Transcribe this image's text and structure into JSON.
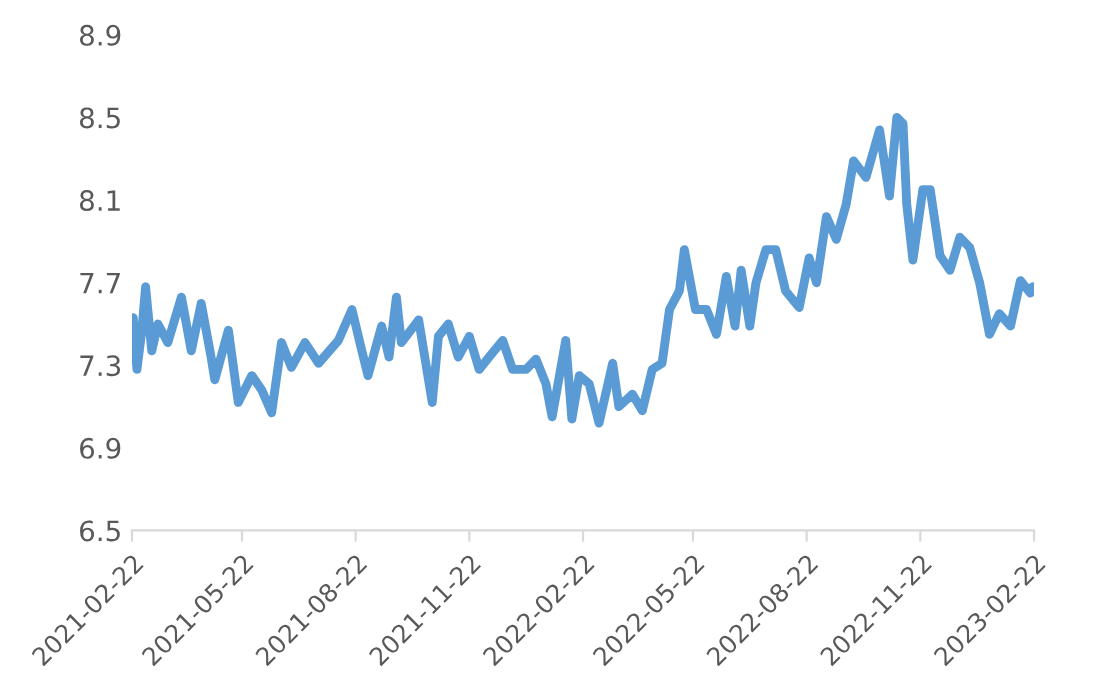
{
  "chart_data": {
    "type": "line",
    "x": [
      "2021-02-23",
      "2021-02-26",
      "2021-03-02",
      "2021-03-05",
      "2021-03-10",
      "2021-03-15",
      "2021-03-23",
      "2021-04-03",
      "2021-04-11",
      "2021-04-19",
      "2021-04-27",
      "2021-04-30",
      "2021-05-11",
      "2021-05-19",
      "2021-05-30",
      "2021-06-07",
      "2021-06-15",
      "2021-06-23",
      "2021-07-01",
      "2021-07-12",
      "2021-07-23",
      "2021-08-08",
      "2021-08-19",
      "2021-08-27",
      "2021-09-01",
      "2021-09-12",
      "2021-09-18",
      "2021-09-24",
      "2021-09-28",
      "2021-10-12",
      "2021-10-23",
      "2021-10-28",
      "2021-11-05",
      "2021-11-13",
      "2021-11-22",
      "2021-11-30",
      "2021-12-08",
      "2021-12-19",
      "2021-12-27",
      "2022-01-07",
      "2022-01-15",
      "2022-01-23",
      "2022-01-28",
      "2022-02-08",
      "2022-02-13",
      "2022-02-19",
      "2022-02-27",
      "2022-03-07",
      "2022-03-18",
      "2022-03-23",
      "2022-04-03",
      "2022-04-11",
      "2022-04-19",
      "2022-04-27",
      "2022-05-03",
      "2022-05-11",
      "2022-05-15",
      "2022-05-24",
      "2022-06-02",
      "2022-06-10",
      "2022-06-18",
      "2022-06-25",
      "2022-06-30",
      "2022-07-07",
      "2022-07-12",
      "2022-07-20",
      "2022-07-28",
      "2022-08-05",
      "2022-08-16",
      "2022-08-24",
      "2022-08-30",
      "2022-09-07",
      "2022-09-15",
      "2022-09-23",
      "2022-09-29",
      "2022-10-09",
      "2022-10-20",
      "2022-10-28",
      "2022-11-03",
      "2022-11-08",
      "2022-11-11",
      "2022-11-16",
      "2022-11-24",
      "2022-11-30",
      "2022-12-08",
      "2022-12-16",
      "2022-12-24",
      "2023-01-01",
      "2023-01-09",
      "2023-01-17",
      "2023-01-25",
      "2023-02-03",
      "2023-02-11",
      "2023-02-19",
      "2023-02-21"
    ],
    "series": [
      {
        "color": "#5b9bd5",
        "values": [
          7.53,
          7.28,
          7.47,
          7.68,
          7.37,
          7.5,
          7.41,
          7.63,
          7.37,
          7.6,
          7.34,
          7.23,
          7.47,
          7.12,
          7.25,
          7.18,
          7.07,
          7.41,
          7.29,
          7.41,
          7.31,
          7.42,
          7.57,
          7.37,
          7.25,
          7.49,
          7.34,
          7.63,
          7.41,
          7.52,
          7.12,
          7.44,
          7.5,
          7.34,
          7.44,
          7.28,
          7.34,
          7.42,
          7.28,
          7.28,
          7.33,
          7.21,
          7.05,
          7.42,
          7.04,
          7.25,
          7.21,
          7.02,
          7.31,
          7.1,
          7.16,
          7.08,
          7.28,
          7.31,
          7.57,
          7.66,
          7.86,
          7.57,
          7.57,
          7.45,
          7.73,
          7.49,
          7.76,
          7.49,
          7.7,
          7.86,
          7.86,
          7.66,
          7.58,
          7.82,
          7.7,
          8.02,
          7.91,
          8.08,
          8.29,
          8.21,
          8.44,
          8.12,
          8.5,
          8.47,
          8.08,
          7.81,
          8.15,
          8.15,
          7.83,
          7.76,
          7.92,
          7.87,
          7.7,
          7.45,
          7.55,
          7.49,
          7.71,
          7.65,
          7.68
        ]
      }
    ],
    "xlim": [
      "2021-02-22",
      "2023-02-22"
    ],
    "xticks": [
      "2021-02-22",
      "2021-05-22",
      "2021-08-22",
      "2021-11-22",
      "2022-02-22",
      "2022-05-22",
      "2022-08-22",
      "2022-11-22",
      "2023-02-22"
    ],
    "ylim": [
      6.5,
      8.9
    ],
    "yticks": [
      6.5,
      6.9,
      7.3,
      7.7,
      8.1,
      8.5,
      8.9
    ],
    "grid": false,
    "legend": false,
    "marker": "none",
    "line_style": "solid"
  }
}
